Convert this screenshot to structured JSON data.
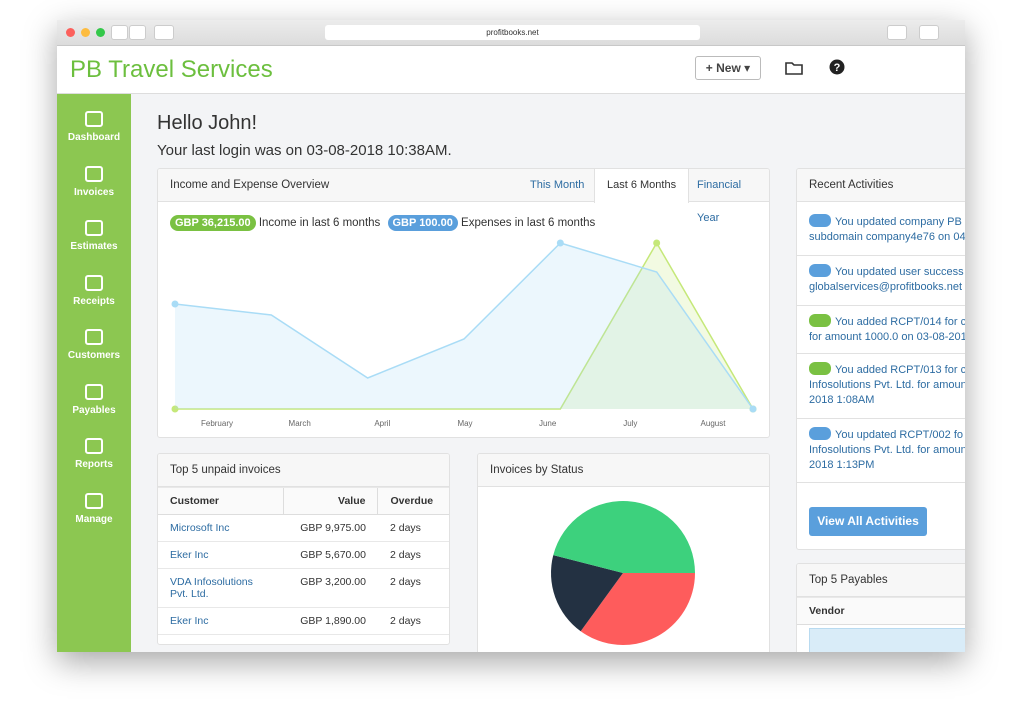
{
  "browser": {
    "url": "profitbooks.net"
  },
  "header": {
    "brand": "PB Travel Services",
    "new_button": "New"
  },
  "sidebar": {
    "items": [
      "Dashboard",
      "Invoices",
      "Estimates",
      "Receipts",
      "Customers",
      "Payables",
      "Reports",
      "Manage"
    ]
  },
  "greeting": {
    "title": "Hello John!",
    "subtitle": "Your last login was on 03-08-2018 10:38AM."
  },
  "overview": {
    "title": "Income and Expense Overview",
    "tabs": [
      "This Month",
      "Last 6 Months",
      "Financial Year"
    ],
    "active_tab": 1,
    "income_badge": "GBP 36,215.00",
    "income_label": "Income in last 6 months",
    "expense_badge": "GBP 100.00",
    "expense_label": "Expenses in last 6 months",
    "chart_data": {
      "type": "area",
      "categories": [
        "February",
        "March",
        "April",
        "May",
        "June",
        "July",
        "August"
      ],
      "series": [
        {
          "color": "#a9dcf6",
          "values": [
            6300,
            5640,
            1860,
            4200,
            9960,
            8220,
            0
          ]
        },
        {
          "color": "#c5e879",
          "axis": "y2",
          "values": [
            0,
            0,
            0,
            0,
            0,
            100,
            0
          ]
        }
      ]
    }
  },
  "unpaid": {
    "title": "Top 5 unpaid invoices",
    "columns": [
      "Customer",
      "Value",
      "Overdue"
    ],
    "rows": [
      [
        "Microsoft Inc",
        "GBP 9,975.00",
        "2 days"
      ],
      [
        "Eker Inc",
        "GBP 5,670.00",
        "2 days"
      ],
      [
        "VDA Infosolutions Pvt. Ltd.",
        "GBP 3,200.00",
        "2 days"
      ],
      [
        "Eker Inc",
        "GBP 1,890.00",
        "2 days"
      ]
    ]
  },
  "status": {
    "title": "Invoices by Status",
    "chart_data": {
      "type": "pie",
      "values": [
        35,
        19,
        46
      ],
      "colors": [
        "#fe5c5c",
        "#233142",
        "#3dd17d"
      ]
    }
  },
  "activities": {
    "title": "Recent Activities",
    "items": [
      {
        "icon": "edit",
        "lines": [
          "You updated company PB",
          "subdomain company4e76 on 04-"
        ]
      },
      {
        "icon": "edit",
        "lines": [
          "You updated user success",
          "globalservices@profitbooks.net o"
        ]
      },
      {
        "icon": "add",
        "lines": [
          "You added RCPT/014 for c",
          "for amount 1000.0 on 03-08-201"
        ]
      },
      {
        "icon": "add",
        "lines": [
          "You added RCPT/013 for c",
          "Infosolutions Pvt. Ltd. for amoun",
          "2018 1:08AM"
        ]
      },
      {
        "icon": "edit",
        "lines": [
          "You updated RCPT/002 fo",
          "Infosolutions Pvt. Ltd. for amoun",
          "2018 1:13PM"
        ]
      }
    ],
    "button": "View All Activities"
  },
  "payables": {
    "title": "Top 5 Payables",
    "columns": [
      "Vendor"
    ]
  }
}
